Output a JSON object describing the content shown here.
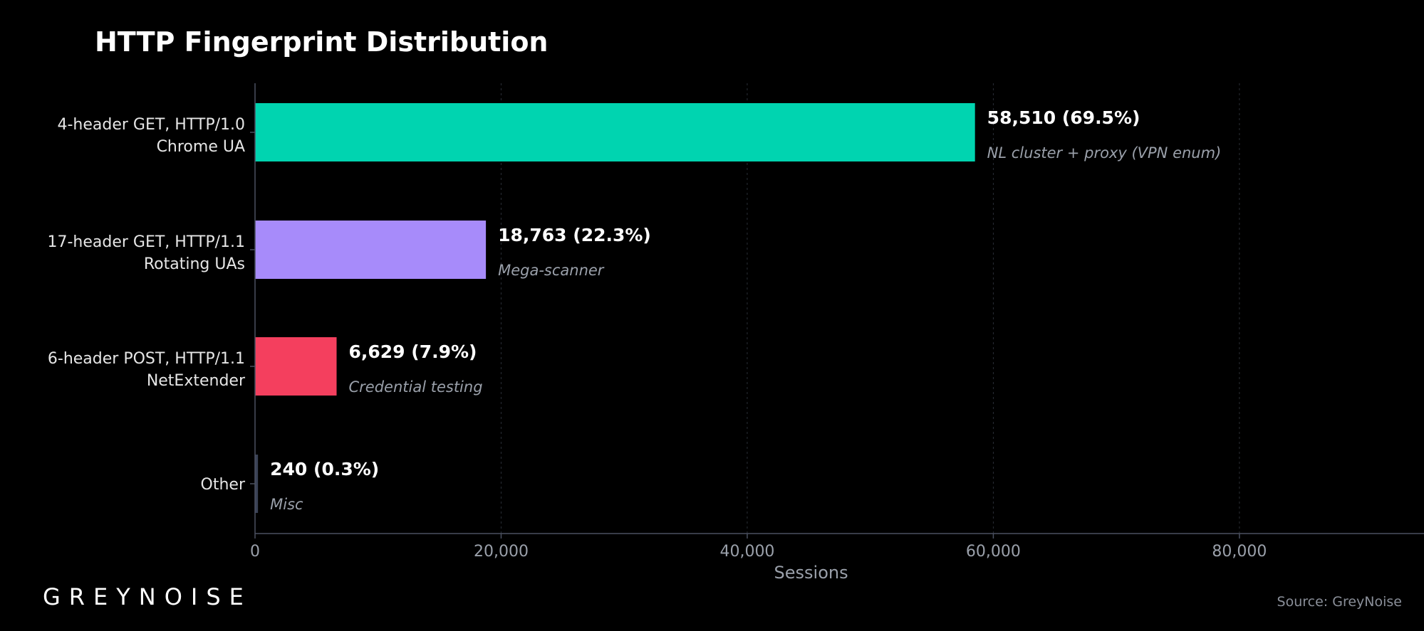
{
  "brand": {
    "logo_text": "GREYNOISE",
    "source_text": "Source: GreyNoise"
  },
  "colors": {
    "background": "#000000",
    "grid": "#2a2e36",
    "axis": "#4a5060",
    "bar_chrome": "#00d4b0",
    "bar_rotating": "#a78bfa",
    "bar_netextender": "#f43f5e",
    "bar_other": "#3a4256"
  },
  "chart_data": {
    "type": "bar",
    "orientation": "horizontal",
    "title": "HTTP Fingerprint Distribution",
    "xlabel": "Sessions",
    "ylabel": "",
    "xlim": [
      0,
      95000
    ],
    "xticks": [
      0,
      20000,
      40000,
      60000,
      80000
    ],
    "xtick_labels": [
      "0",
      "20,000",
      "40,000",
      "60,000",
      "80,000"
    ],
    "grid": true,
    "categories": [
      {
        "line1": "4-header GET, HTTP/1.0",
        "line2": "Chrome UA"
      },
      {
        "line1": "17-header GET, HTTP/1.1",
        "line2": "Rotating UAs"
      },
      {
        "line1": "6-header POST, HTTP/1.1",
        "line2": "NetExtender"
      },
      {
        "line1": "Other",
        "line2": ""
      }
    ],
    "values": [
      58510,
      18763,
      6629,
      240
    ],
    "value_labels": [
      "58,510 (69.5%)",
      "18,763 (22.3%)",
      "6,629 (7.9%)",
      "240 (0.3%)"
    ],
    "annotations": [
      "NL cluster + proxy (VPN enum)",
      "Mega-scanner",
      "Credential testing",
      "Misc"
    ],
    "bar_colors": [
      "#00d4b0",
      "#a78bfa",
      "#f43f5e",
      "#3a4256"
    ]
  }
}
